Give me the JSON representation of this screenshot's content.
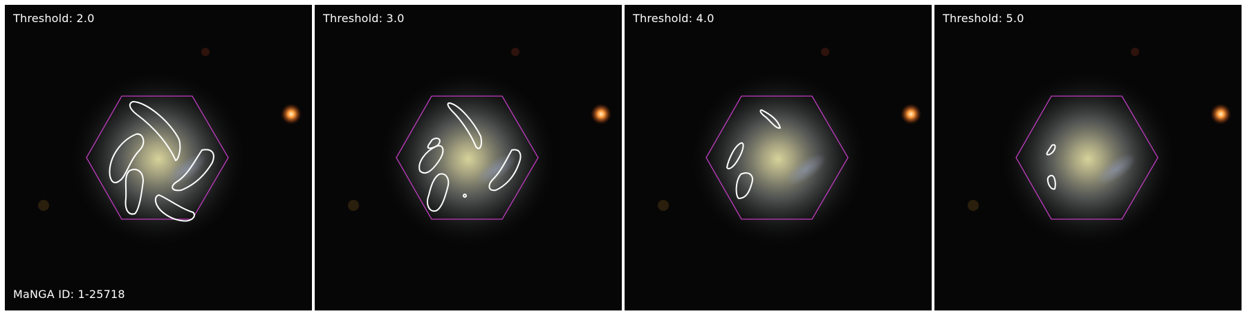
{
  "panels": [
    {
      "threshold_label": "Threshold: 2.0"
    },
    {
      "threshold_label": "Threshold: 3.0"
    },
    {
      "threshold_label": "Threshold: 4.0"
    },
    {
      "threshold_label": "Threshold: 5.0"
    }
  ],
  "galaxy_id_label": "MaNGA ID: 1-25718",
  "colors": {
    "hexagon": "#c03cc0",
    "contour": "#ffffff",
    "background": "#060606",
    "star": "#ff9a3c"
  }
}
